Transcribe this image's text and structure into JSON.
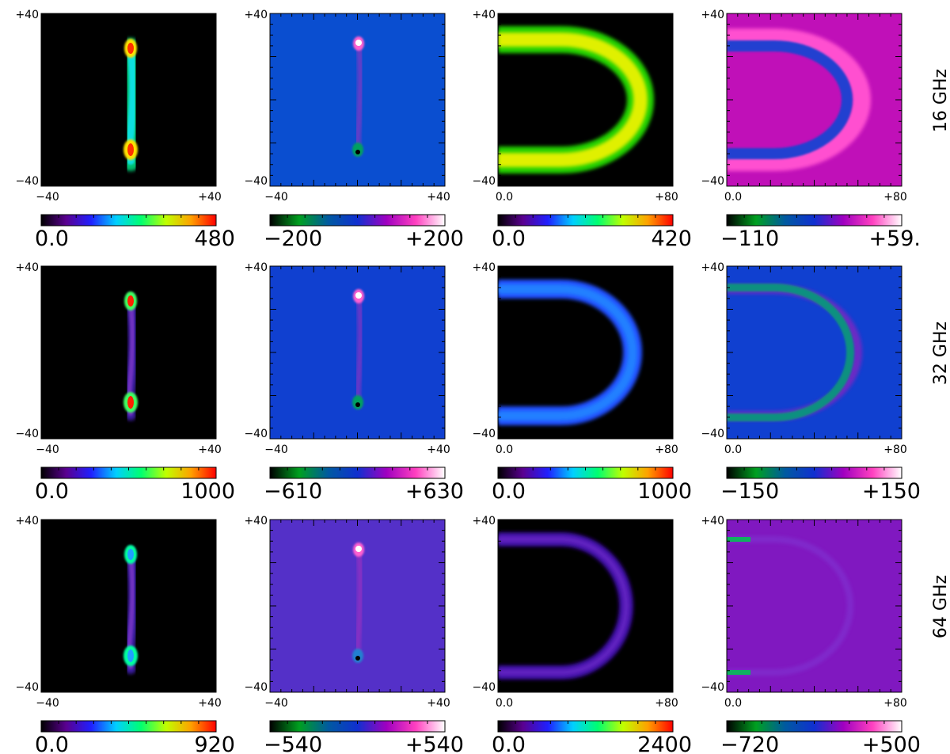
{
  "chart_data": {
    "type": "heatmap",
    "rows": [
      {
        "label": "16 GHz",
        "panels": [
          {
            "kind": "bar-I",
            "bg": "#000000",
            "cbar": {
              "cmap": "rainbow",
              "min": "0.0",
              "max": "480"
            }
          },
          {
            "kind": "bar-V",
            "bg": "#0a4ed0",
            "cbar": {
              "cmap": "green-pink",
              "min": "−200",
              "max": "+200"
            }
          },
          {
            "kind": "arc-I",
            "bg": "#000000",
            "cbar": {
              "cmap": "rainbow",
              "min": "0.0",
              "max": "420"
            }
          },
          {
            "kind": "arc-V",
            "bg": "#c010b8",
            "cbar": {
              "cmap": "green-pink",
              "min": "−110",
              "max": "+59."
            }
          }
        ]
      },
      {
        "label": "32 GHz",
        "panels": [
          {
            "kind": "bar-I",
            "bg": "#000000",
            "cbar": {
              "cmap": "rainbow",
              "min": "0.0",
              "max": "1000"
            }
          },
          {
            "kind": "bar-V",
            "bg": "#1040d0",
            "cbar": {
              "cmap": "green-pink",
              "min": "−610",
              "max": "+630"
            }
          },
          {
            "kind": "arc-I",
            "bg": "#000000",
            "cbar": {
              "cmap": "rainbow",
              "min": "0.0",
              "max": "1000"
            }
          },
          {
            "kind": "arc-V",
            "bg": "#1040d0",
            "cbar": {
              "cmap": "green-pink",
              "min": "−150",
              "max": "+150"
            }
          }
        ]
      },
      {
        "label": "64 GHz",
        "panels": [
          {
            "kind": "bar-I",
            "bg": "#000000",
            "cbar": {
              "cmap": "rainbow",
              "min": "0.0",
              "max": "920"
            }
          },
          {
            "kind": "bar-V",
            "bg": "#5430c8",
            "cbar": {
              "cmap": "green-pink",
              "min": "−540",
              "max": "+540"
            }
          },
          {
            "kind": "arc-I",
            "bg": "#000000",
            "cbar": {
              "cmap": "rainbow",
              "min": "0.0",
              "max": "2400"
            }
          },
          {
            "kind": "arc-V",
            "bg": "#8018c0",
            "cbar": {
              "cmap": "green-pink",
              "min": "−720",
              "max": "+500"
            }
          }
        ]
      }
    ],
    "axes": {
      "y_tick_labels": [
        "+40",
        "−40"
      ],
      "x_tick_labels_centered": [
        "−40",
        "+40"
      ],
      "x_tick_labels_offset": [
        "0.0",
        "+80"
      ]
    },
    "colormaps": {
      "rainbow": [
        "#000000",
        "#5a0090",
        "#2020ff",
        "#00d0ff",
        "#00ff70",
        "#c0ff00",
        "#ffa000",
        "#ff0000"
      ],
      "green-pink": [
        "#000000",
        "#00a020",
        "#005aa0",
        "#1030d0",
        "#a000c0",
        "#ff40c0",
        "#ffffff"
      ]
    }
  }
}
